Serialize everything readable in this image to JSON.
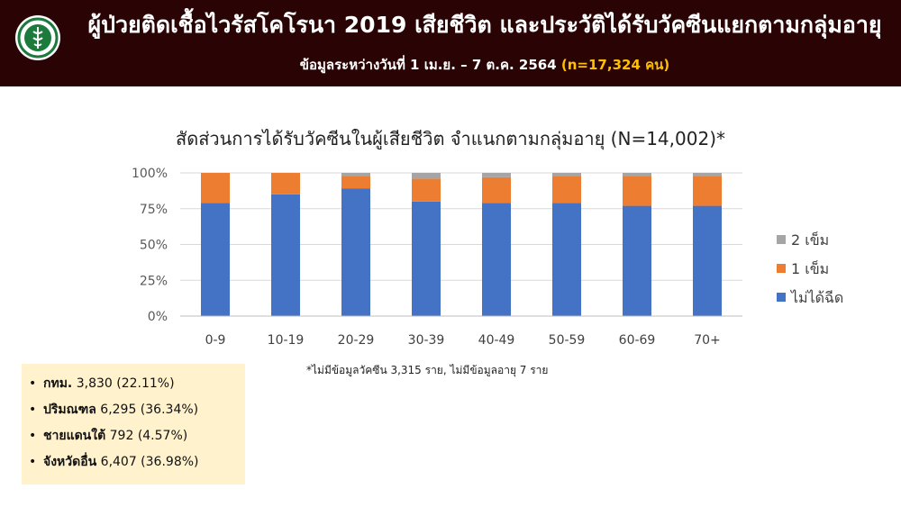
{
  "header": {
    "title": "ผู้ป่วยติดเชื้อไวรัสโคโรนา 2019 เสียชีวิต และประวัติได้รับวัคซีนแยกตามกลุ่มอายุ",
    "subtitle_main": "ข้อมูลระหว่างวันที่ 1 เม.ย. – 7 ต.ค. 2564",
    "subtitle_highlight": "(n=17,324 คน)",
    "logo_icon": "moph-emblem-icon"
  },
  "chart_data": {
    "type": "bar",
    "stacked": true,
    "title": "สัดส่วนการได้รับวัคซีนในผู้เสียชีวิต จำแนกตามกลุ่มอายุ (N=14,002)*",
    "categories": [
      "0-9",
      "10-19",
      "20-29",
      "30-39",
      "40-49",
      "50-59",
      "60-69",
      "70+"
    ],
    "series": [
      {
        "name": "ไม่ได้ฉีด",
        "color": "#4472c4",
        "values": [
          79,
          85,
          89,
          80,
          79,
          79,
          77,
          77
        ]
      },
      {
        "name": "1 เข็ม",
        "color": "#ed7d31",
        "values": [
          21,
          15,
          9,
          16,
          18,
          19,
          21,
          21
        ]
      },
      {
        "name": "2 เข็ม",
        "color": "#a5a5a5",
        "values": [
          0,
          0,
          2,
          4,
          3,
          2,
          2,
          2
        ]
      }
    ],
    "yticks": [
      "0%",
      "25%",
      "50%",
      "75%",
      "100%"
    ],
    "ylim": [
      0,
      100
    ],
    "grid": true,
    "legend": "right",
    "footnote": "*ไม่มีข้อมูลวัคซีน 3,315 ราย, ไม่มีข้อมูลอายุ 7 ราย"
  },
  "infobox": {
    "items": [
      {
        "label": "กทม.",
        "value": "3,830 (22.11%)"
      },
      {
        "label": "ปริมณฑล",
        "value": "6,295 (36.34%)"
      },
      {
        "label": "ชายแดนใต้",
        "value": "792 (4.57%)"
      },
      {
        "label": "จังหวัดอื่น",
        "value": "6,407 (36.98%)"
      }
    ]
  }
}
